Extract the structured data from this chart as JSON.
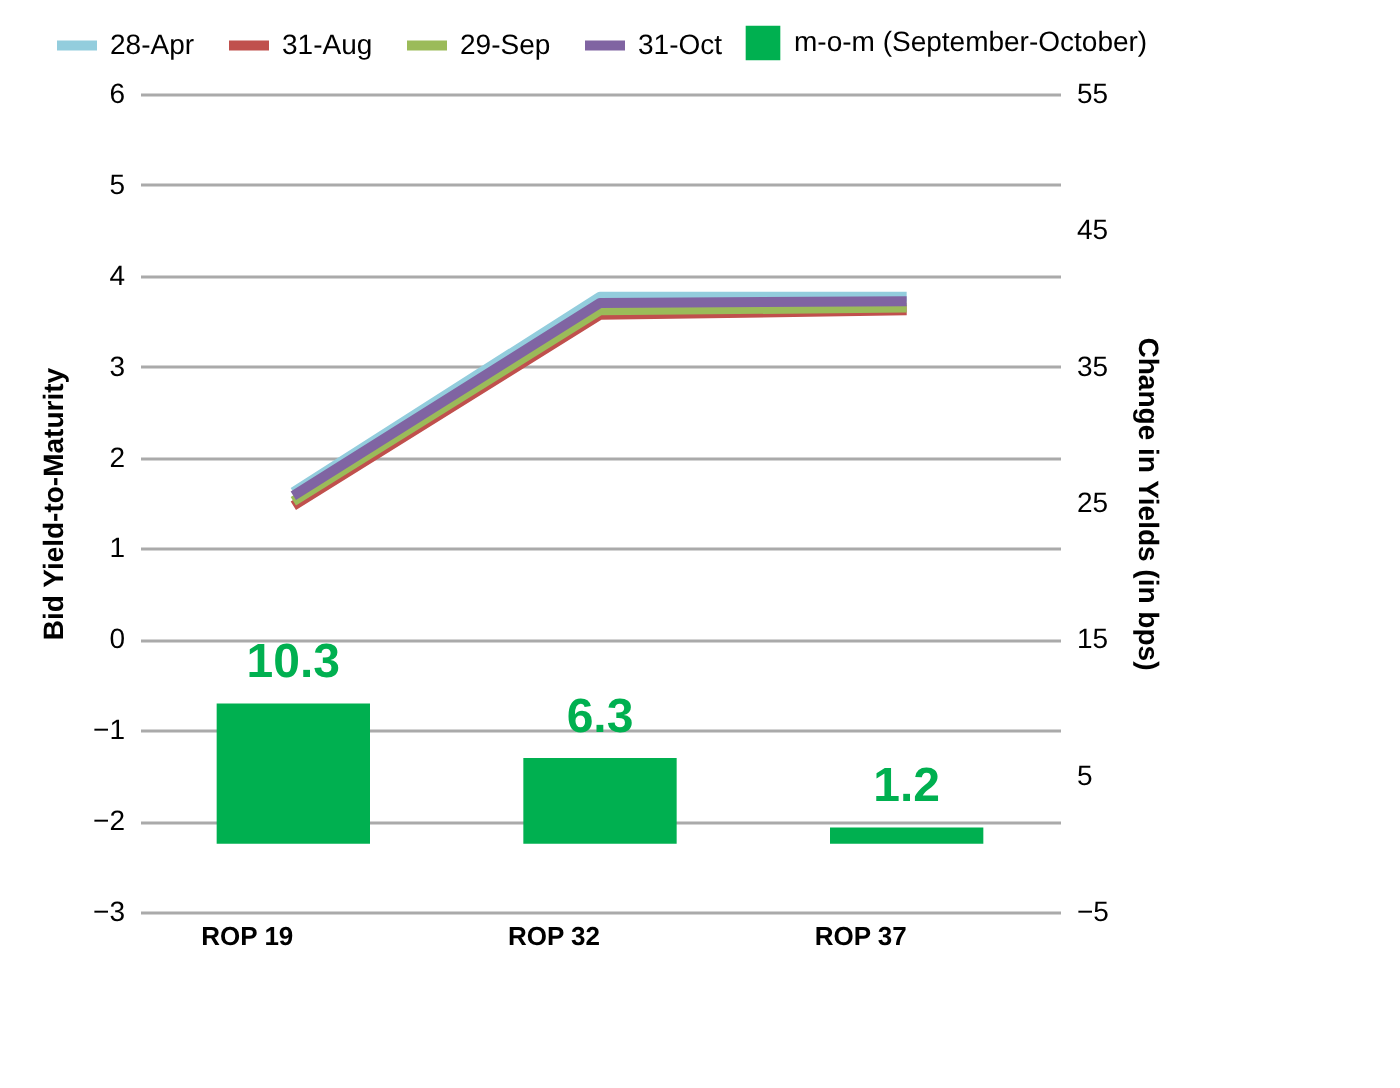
{
  "chart_data": {
    "type": "line",
    "categories": [
      "ROP 19",
      "ROP 32",
      "ROP 37"
    ],
    "ylabel": "Bid Yield-to-Maturity",
    "y2label": "Change in Yields (in bps)",
    "ylim": [
      -3,
      6
    ],
    "yticks": [
      -3,
      -2,
      -1,
      0,
      1,
      2,
      3,
      4,
      5,
      6
    ],
    "y2lim": [
      -5,
      55
    ],
    "y2ticks": [
      -5,
      5,
      15,
      25,
      35,
      45,
      55
    ],
    "grid": "y",
    "legend": "top",
    "series": [
      {
        "name": "m-o-m (September-October)",
        "type": "bar",
        "axis": "y2",
        "color": "#00b050",
        "values": [
          10.3,
          6.3,
          1.2
        ],
        "value_labels": [
          "10.3",
          "6.3",
          "1.2"
        ]
      },
      {
        "name": "28-Apr",
        "color": "#93cddd",
        "values": [
          1.62,
          3.77,
          3.77
        ]
      },
      {
        "name": "31-Aug",
        "color": "#c0504d",
        "values": [
          1.47,
          3.57,
          3.62
        ]
      },
      {
        "name": "29-Sep",
        "color": "#9bbb59",
        "values": [
          1.52,
          3.62,
          3.65
        ]
      },
      {
        "name": "31-Oct",
        "color": "#8064a2",
        "values": [
          1.58,
          3.7,
          3.72
        ]
      }
    ]
  }
}
